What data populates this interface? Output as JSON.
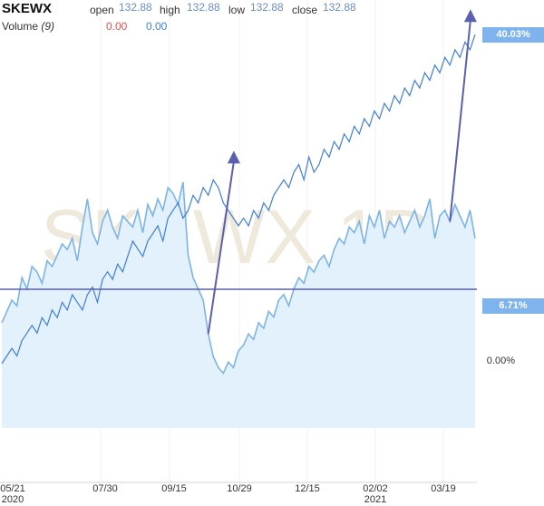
{
  "header": {
    "symbol": "SKEWX",
    "open_label": "open",
    "open_value": "132.88",
    "high_label": "high",
    "high_value": "132.88",
    "low_label": "low",
    "low_value": "132.88",
    "close_label": "close",
    "close_value": "132.88",
    "volume_label": "Volume",
    "volume_period": "(9)",
    "volume_value_1": "0.00",
    "volume_value_2": "0.00"
  },
  "watermark": "SKEWX 1D",
  "tags": {
    "top": "40.03%",
    "mid": "6.71%",
    "zero": "0.00%"
  },
  "colors": {
    "line": "#3f7fd6",
    "area_line": "#7db4e6",
    "area_fill": "#e3f1fd",
    "tag": "#7fb3ee",
    "annotation": "#5b5fb0",
    "watermark": "#efe9dc"
  },
  "chart_data": {
    "type": "line",
    "x_ticks": [
      {
        "label": "05/21",
        "sub": "2020"
      },
      {
        "label": "07/30",
        "sub": ""
      },
      {
        "label": "09/15",
        "sub": ""
      },
      {
        "label": "10/29",
        "sub": ""
      },
      {
        "label": "12/15",
        "sub": ""
      },
      {
        "label": "02/02",
        "sub": "2021"
      },
      {
        "label": "03/19",
        "sub": ""
      }
    ],
    "series": [
      {
        "role": "price_percent_change",
        "values": [
          -3,
          -2,
          -1,
          -2,
          0,
          1,
          2,
          1,
          3,
          2,
          4,
          3,
          5,
          4,
          6,
          5,
          4,
          6,
          7,
          5,
          8,
          9,
          8,
          10,
          9,
          11,
          13,
          12,
          11,
          13,
          14,
          15,
          13,
          16,
          17,
          18,
          16,
          17,
          19,
          18,
          20,
          19,
          21,
          20,
          18,
          17,
          16,
          15,
          16,
          15,
          17,
          16,
          18,
          17,
          19,
          20,
          21,
          20,
          22,
          23,
          21,
          24,
          22,
          23,
          25,
          24,
          26,
          25,
          27,
          26,
          28,
          27,
          29,
          28,
          30,
          29,
          31,
          30,
          32,
          31,
          33,
          32,
          34,
          33,
          35,
          34,
          36,
          35,
          37,
          36,
          38,
          37,
          39,
          38,
          40
        ]
      },
      {
        "role": "secondary_area",
        "values": [
          16,
          18,
          20,
          19,
          24,
          22,
          26,
          25,
          23,
          27,
          26,
          28,
          30,
          29,
          31,
          27,
          33,
          38,
          32,
          30,
          34,
          36,
          33,
          31,
          35,
          34,
          33,
          36,
          32,
          37,
          35,
          38,
          36,
          40,
          39,
          37,
          41,
          28,
          24,
          22,
          20,
          14,
          10,
          8,
          7,
          9,
          8,
          11,
          12,
          14,
          13,
          16,
          15,
          18,
          17,
          20,
          21,
          19,
          22,
          24,
          23,
          26,
          25,
          27,
          28,
          26,
          29,
          31,
          30,
          33,
          32,
          34,
          30,
          35,
          33,
          36,
          31,
          34,
          33,
          35,
          32,
          34,
          36,
          33,
          35,
          38,
          31,
          35,
          36,
          34,
          37,
          35,
          33,
          36,
          31
        ]
      }
    ],
    "annotations": [
      {
        "type": "horizontal_line",
        "value": 6.71
      },
      {
        "type": "arrow",
        "from_index": 41,
        "to_index": 45
      },
      {
        "type": "arrow",
        "from_index": 89,
        "to_index": 92
      }
    ]
  }
}
